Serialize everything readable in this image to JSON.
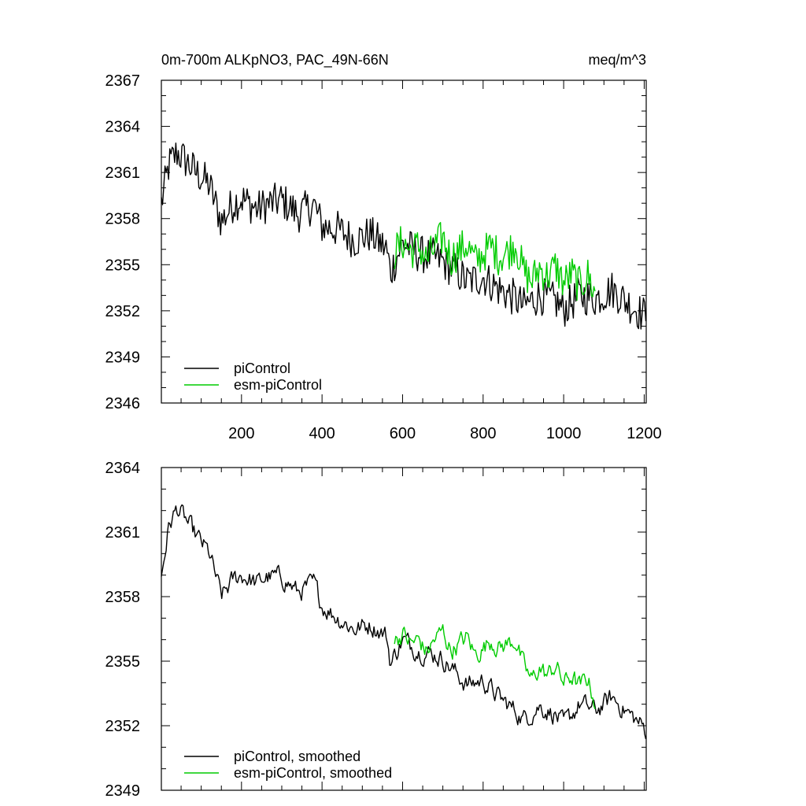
{
  "chart_data": [
    {
      "type": "line",
      "title": "0m-700m ALKpNO3, PAC_49N-66N",
      "units": "meq/m^3",
      "xlabel": "",
      "ylabel": "",
      "xlim": [
        1,
        1205
      ],
      "ylim": [
        2346,
        2367
      ],
      "xticks": [
        200,
        400,
        600,
        800,
        1000,
        1200
      ],
      "yticks": [
        2346,
        2349,
        2352,
        2355,
        2358,
        2361,
        2364,
        2367
      ],
      "legend_position": "bottom-left",
      "grid": false,
      "series": [
        {
          "name": "piControl",
          "color": "#000000",
          "x": [
            1,
            20,
            40,
            60,
            80,
            100,
            120,
            150,
            180,
            200,
            240,
            260,
            300,
            340,
            380,
            400,
            440,
            480,
            520,
            560,
            570,
            600,
            640,
            680,
            700,
            740,
            760,
            800,
            840,
            880,
            900,
            940,
            980,
            1000,
            1040,
            1080,
            1120,
            1160,
            1200,
            1205
          ],
          "y": [
            2359.0,
            2361.5,
            2362.3,
            2361.8,
            2361.2,
            2360.7,
            2360.2,
            2357.8,
            2359.0,
            2359.3,
            2358.6,
            2358.9,
            2359.2,
            2358.3,
            2358.9,
            2357.5,
            2357.3,
            2356.6,
            2357.0,
            2356.0,
            2354.5,
            2356.4,
            2355.7,
            2355.5,
            2355.2,
            2354.4,
            2353.9,
            2354.2,
            2353.4,
            2352.8,
            2352.3,
            2353.0,
            2352.6,
            2352.1,
            2353.0,
            2352.8,
            2353.4,
            2352.5,
            2351.7,
            2352.2
          ]
        },
        {
          "name": "esm-piControl",
          "color": "#00cc00",
          "x": [
            580,
            600,
            620,
            640,
            660,
            680,
            700,
            720,
            740,
            760,
            780,
            800,
            820,
            840,
            860,
            880,
            900,
            920,
            940,
            960,
            980,
            1000,
            1020,
            1040,
            1060,
            1080
          ],
          "y": [
            2355.8,
            2356.5,
            2355.9,
            2356.2,
            2355.3,
            2356.1,
            2356.8,
            2355.4,
            2355.9,
            2356.3,
            2355.2,
            2355.7,
            2356.2,
            2355.5,
            2355.8,
            2356.4,
            2354.6,
            2353.9,
            2354.8,
            2354.2,
            2354.9,
            2353.8,
            2354.4,
            2353.6,
            2354.3,
            2352.9
          ]
        }
      ]
    },
    {
      "type": "line",
      "title": "",
      "xlabel": "",
      "ylabel": "",
      "xlim": [
        1,
        1205
      ],
      "ylim": [
        2349,
        2364
      ],
      "xticks": [
        200,
        400,
        600,
        800,
        1000,
        1200
      ],
      "yticks": [
        2349,
        2352,
        2355,
        2358,
        2361,
        2364
      ],
      "legend_position": "bottom-left",
      "grid": false,
      "series": [
        {
          "name": "piControl, smoothed",
          "color": "#000000",
          "x": [
            1,
            20,
            40,
            60,
            80,
            100,
            120,
            150,
            180,
            200,
            240,
            260,
            300,
            340,
            380,
            400,
            440,
            480,
            520,
            560,
            570,
            600,
            640,
            680,
            700,
            740,
            760,
            800,
            840,
            880,
            900,
            940,
            980,
            1000,
            1040,
            1080,
            1120,
            1160,
            1200,
            1205
          ],
          "y": [
            2359.0,
            2361.3,
            2362.1,
            2361.6,
            2361.0,
            2360.5,
            2360.0,
            2358.0,
            2358.8,
            2359.0,
            2358.6,
            2358.9,
            2358.9,
            2358.2,
            2358.6,
            2357.6,
            2357.0,
            2356.5,
            2356.7,
            2356.2,
            2354.9,
            2356.0,
            2355.5,
            2355.3,
            2355.1,
            2354.3,
            2353.9,
            2354.1,
            2353.3,
            2352.7,
            2352.3,
            2352.9,
            2352.5,
            2352.0,
            2353.0,
            2352.7,
            2353.3,
            2352.6,
            2351.9,
            2351.7
          ]
        },
        {
          "name": "esm-piControl, smoothed",
          "color": "#00cc00",
          "x": [
            580,
            600,
            620,
            640,
            660,
            680,
            700,
            720,
            740,
            760,
            780,
            800,
            820,
            840,
            860,
            880,
            900,
            920,
            940,
            960,
            980,
            1000,
            1020,
            1040,
            1060,
            1080
          ],
          "y": [
            2355.9,
            2356.3,
            2355.8,
            2356.0,
            2355.4,
            2356.0,
            2356.4,
            2355.5,
            2355.8,
            2356.1,
            2355.3,
            2355.6,
            2356.0,
            2355.6,
            2355.8,
            2356.0,
            2354.8,
            2354.1,
            2354.7,
            2354.3,
            2354.8,
            2354.0,
            2354.3,
            2353.8,
            2354.2,
            2353.0
          ]
        }
      ]
    }
  ]
}
